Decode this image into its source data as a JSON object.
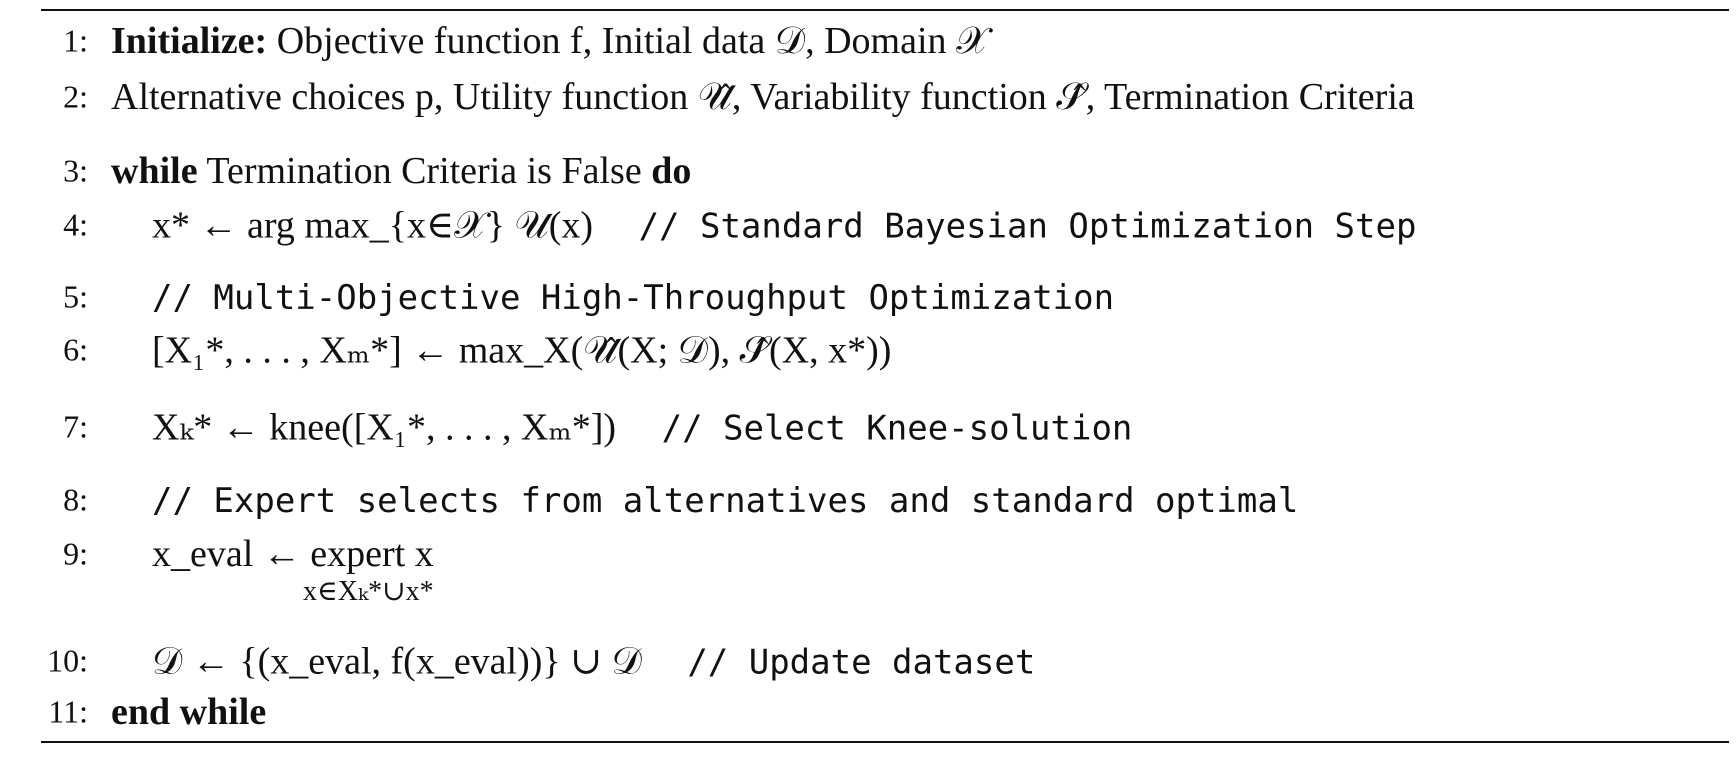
{
  "algorithm": {
    "lines": [
      {
        "number": "1:",
        "parts": [
          "Initialize:",
          "Objective function f, Initial data 𝒟, Domain 𝒳"
        ]
      },
      {
        "number": "2:",
        "parts": [
          "Alternative choices p, Utility function 𝒰̂, Variability function 𝒮̂, Termination Criteria"
        ]
      },
      {
        "number": "3:",
        "parts": [
          "while",
          "Termination Criteria is False",
          "do"
        ]
      },
      {
        "number": "4:",
        "parts": [
          "x* ← arg max_{x∈𝒳} 𝒰(x)",
          "// Standard Bayesian Optimization Step"
        ]
      },
      {
        "number": "5:",
        "parts": [
          "// Multi-Objective High-Throughput Optimization"
        ]
      },
      {
        "number": "6:",
        "parts": [
          "[X₁*, . . . , Xₘ*] ← max_X(𝒰̂(X; 𝒟), 𝒮̂(X, x*))"
        ]
      },
      {
        "number": "7:",
        "parts": [
          "Xₖ* ← knee([X₁*, . . . , Xₘ*])",
          "// Select Knee-solution"
        ]
      },
      {
        "number": "8:",
        "parts": [
          "// Expert selects from alternatives and standard optimal"
        ]
      },
      {
        "number": "9:",
        "parts": [
          "x_eval ← expert x",
          "x∈Xₖ*∪x*"
        ]
      },
      {
        "number": "10:",
        "parts": [
          "𝒟 ← {(x_eval, f(x_eval))} ∪ 𝒟",
          "// Update dataset"
        ]
      },
      {
        "number": "11:",
        "parts": [
          "end while"
        ]
      }
    ]
  }
}
